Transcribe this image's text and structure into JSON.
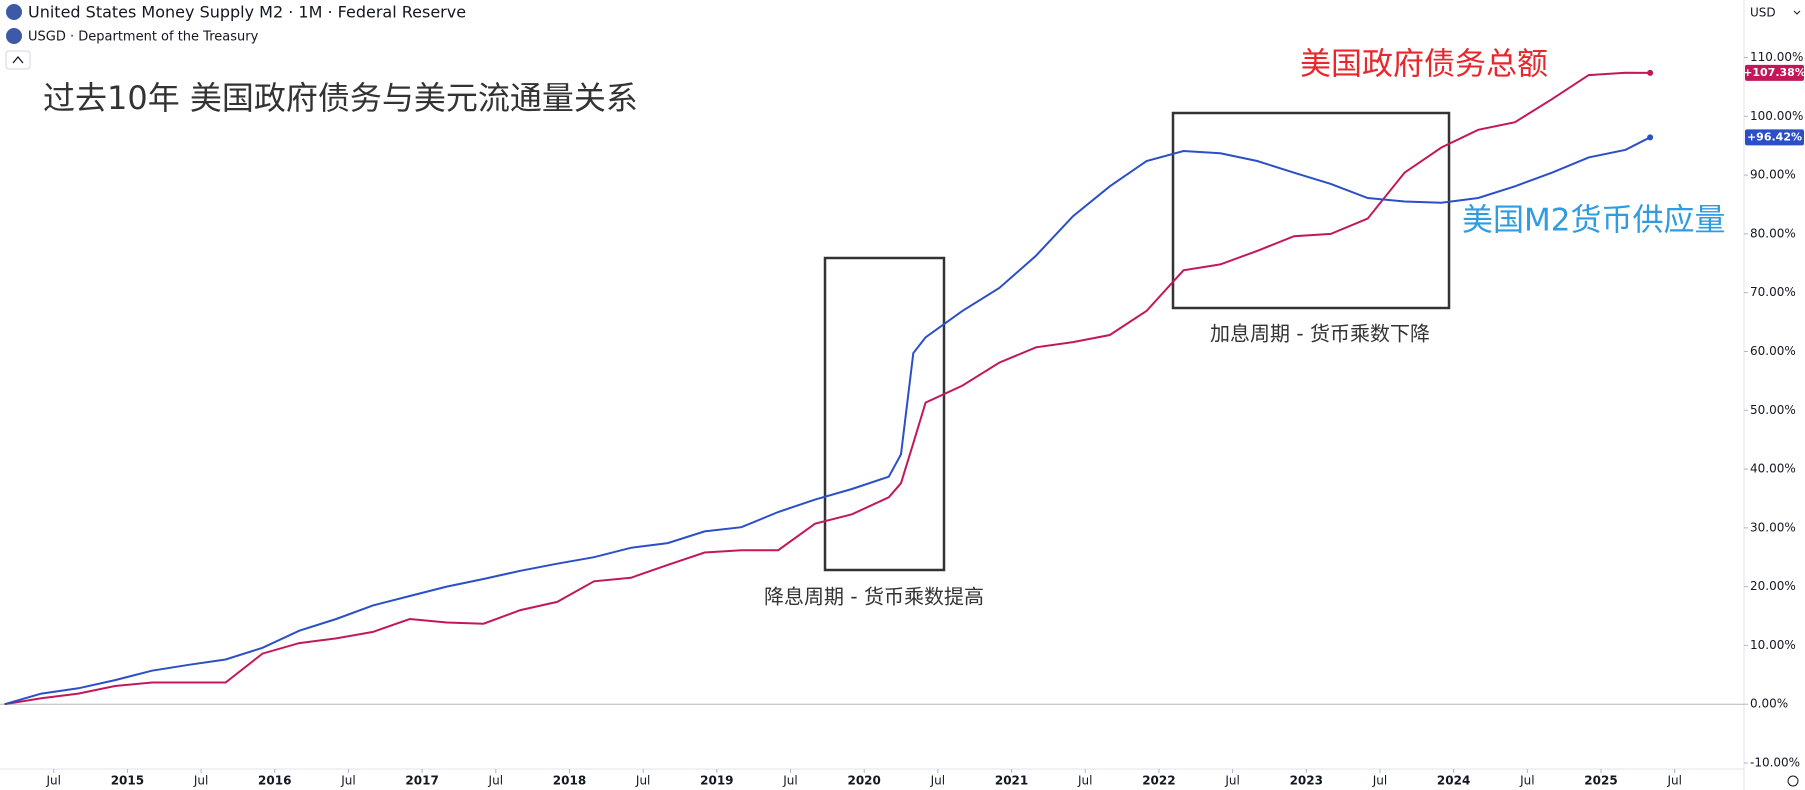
{
  "header": {
    "main_symbol": "United States Money Supply M2 · 1M · Federal Reserve",
    "compare_symbol": "USGD · Department of the Treasury",
    "currency": "USD"
  },
  "chart_data": {
    "type": "line",
    "title": "过去10年 美国政府债务与美元流通量关系",
    "annotations": [
      "美国政府债务总额",
      "美国M2货币供应量",
      "降息周期 - 货币乘数提高",
      "加息周期 - 货币乘数下降"
    ],
    "x": [
      "2014-03",
      "2014-06",
      "2014-09",
      "2014-12",
      "2015-03",
      "2015-06",
      "2015-09",
      "2015-12",
      "2016-03",
      "2016-06",
      "2016-09",
      "2016-12",
      "2017-03",
      "2017-06",
      "2017-09",
      "2017-12",
      "2018-03",
      "2018-06",
      "2018-09",
      "2018-12",
      "2019-03",
      "2019-06",
      "2019-09",
      "2019-12",
      "2020-03",
      "2020-04",
      "2020-05",
      "2020-06",
      "2020-09",
      "2020-12",
      "2021-03",
      "2021-06",
      "2021-09",
      "2021-12",
      "2022-03",
      "2022-06",
      "2022-09",
      "2022-12",
      "2023-03",
      "2023-06",
      "2023-09",
      "2023-12",
      "2024-03",
      "2024-06",
      "2024-09",
      "2024-12",
      "2025-03",
      "2025-05"
    ],
    "series": [
      {
        "name": "USGD",
        "color": "#c2185b",
        "values": [
          0,
          1,
          1.8,
          3.1,
          3.7,
          3.7,
          3.7,
          8.6,
          10.4,
          11.2,
          12.3,
          14.5,
          13.9,
          13.7,
          16,
          17.4,
          20.9,
          21.5,
          23.7,
          25.8,
          26.2,
          26.2,
          30.7,
          32.3,
          35.2,
          37.6,
          44.4,
          51.3,
          54.2,
          58.1,
          60.7,
          61.6,
          62.8,
          66.9,
          73.8,
          74.8,
          77.1,
          79.6,
          80,
          82.6,
          90.4,
          94.7,
          97.7,
          99,
          102.9,
          107,
          107.4,
          107.38
        ],
        "value_labels": [
          null,
          null,
          null,
          null,
          null,
          null,
          null,
          null,
          null,
          null,
          null,
          null,
          null,
          null,
          null,
          null,
          null,
          null,
          null,
          null,
          null,
          null,
          null,
          null,
          null,
          null,
          null,
          null,
          null,
          null,
          null,
          null,
          null,
          null,
          null,
          null,
          null,
          null,
          null,
          null,
          null,
          null,
          null,
          null,
          null,
          null,
          null,
          "+107.38%"
        ]
      },
      {
        "name": "M2",
        "color": "#2a4fc6",
        "values": [
          0,
          1.8,
          2.7,
          4.1,
          5.7,
          6.7,
          7.6,
          9.6,
          12.5,
          14.5,
          16.8,
          18.4,
          20,
          21.3,
          22.7,
          23.9,
          25,
          26.6,
          27.4,
          29.4,
          30.1,
          32.7,
          34.8,
          36.6,
          38.7,
          42.5,
          59.7,
          62.4,
          66.9,
          70.8,
          76.3,
          83,
          88.1,
          92.4,
          94.1,
          93.7,
          92.4,
          90.4,
          88.5,
          86.1,
          85.5,
          85.3,
          86.1,
          88.1,
          90.4,
          93,
          94.3,
          96.42
        ],
        "value_labels": [
          null,
          null,
          null,
          null,
          null,
          null,
          null,
          null,
          null,
          null,
          null,
          null,
          null,
          null,
          null,
          null,
          null,
          null,
          null,
          null,
          null,
          null,
          null,
          null,
          null,
          null,
          null,
          null,
          null,
          null,
          null,
          null,
          null,
          null,
          null,
          null,
          null,
          null,
          null,
          null,
          null,
          null,
          null,
          null,
          null,
          null,
          null,
          "+96.42%"
        ]
      }
    ],
    "ylim": [
      -10,
      110
    ],
    "yticks": [
      {
        "value": -10,
        "label": "-10.00%"
      },
      {
        "value": 0,
        "label": "0.00%"
      },
      {
        "value": 10,
        "label": "10.00%"
      },
      {
        "value": 20,
        "label": "20.00%"
      },
      {
        "value": 30,
        "label": "30.00%"
      },
      {
        "value": 40,
        "label": "40.00%"
      },
      {
        "value": 50,
        "label": "50.00%"
      },
      {
        "value": 60,
        "label": "60.00%"
      },
      {
        "value": 70,
        "label": "70.00%"
      },
      {
        "value": 80,
        "label": "80.00%"
      },
      {
        "value": 90,
        "label": "90.00%"
      },
      {
        "value": 100,
        "label": "100.00%"
      },
      {
        "value": 110,
        "label": "110.00%"
      }
    ],
    "xticks": [
      {
        "value": "2014-07",
        "label": "Jul"
      },
      {
        "value": "2015-01",
        "label": "2015"
      },
      {
        "value": "2015-07",
        "label": "Jul"
      },
      {
        "value": "2016-01",
        "label": "2016"
      },
      {
        "value": "2016-07",
        "label": "Jul"
      },
      {
        "value": "2017-01",
        "label": "2017"
      },
      {
        "value": "2017-07",
        "label": "Jul"
      },
      {
        "value": "2018-01",
        "label": "2018"
      },
      {
        "value": "2018-07",
        "label": "Jul"
      },
      {
        "value": "2019-01",
        "label": "2019"
      },
      {
        "value": "2019-07",
        "label": "Jul"
      },
      {
        "value": "2020-01",
        "label": "2020"
      },
      {
        "value": "2020-07",
        "label": "Jul"
      },
      {
        "value": "2021-01",
        "label": "2021"
      },
      {
        "value": "2021-07",
        "label": "Jul"
      },
      {
        "value": "2022-01",
        "label": "2022"
      },
      {
        "value": "2022-07",
        "label": "Jul"
      },
      {
        "value": "2023-01",
        "label": "2023"
      },
      {
        "value": "2023-07",
        "label": "Jul"
      },
      {
        "value": "2024-01",
        "label": "2024"
      },
      {
        "value": "2024-07",
        "label": "Jul"
      },
      {
        "value": "2025-01",
        "label": "2025"
      },
      {
        "value": "2025-07",
        "label": "Jul"
      }
    ]
  }
}
